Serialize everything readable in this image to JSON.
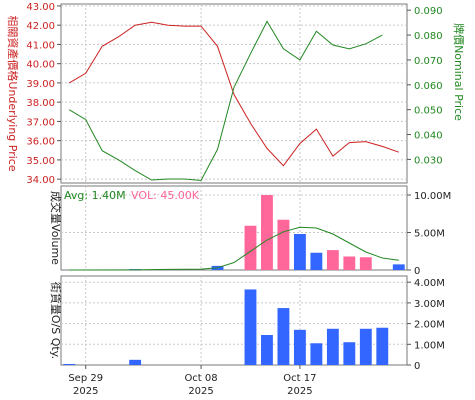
{
  "chart_data": [
    {
      "type": "line",
      "y_left_label": "相關資產價格Underlying Price",
      "y_right_label": "牌價Nominal Price",
      "y_left_ticks": [
        "34.00",
        "35.00",
        "36.00",
        "37.00",
        "38.00",
        "39.00",
        "40.00",
        "41.00",
        "42.00",
        "43.00"
      ],
      "y_right_ticks": [
        "0.030",
        "0.040",
        "0.050",
        "0.060",
        "0.070",
        "0.080",
        "0.090"
      ],
      "ylim_left": [
        33.8,
        43.1
      ],
      "ylim_right": [
        0.0205,
        0.0925
      ],
      "grid": true,
      "series": [
        {
          "color": "#cc2222",
          "axis": "left",
          "points": [
            [
              0,
              39.0
            ],
            [
              1,
              39.5
            ],
            [
              2,
              40.9
            ],
            [
              3,
              41.4
            ],
            [
              4,
              42.0
            ],
            [
              5,
              42.15
            ],
            [
              6,
              42.0
            ],
            [
              7,
              41.95
            ],
            [
              8,
              41.95
            ],
            [
              9,
              40.9
            ],
            [
              10,
              38.4
            ],
            [
              11,
              36.9
            ],
            [
              12,
              35.6
            ],
            [
              13,
              34.7
            ],
            [
              14,
              35.85
            ],
            [
              15,
              36.6
            ],
            [
              16,
              35.2
            ],
            [
              17,
              35.9
            ],
            [
              18,
              35.95
            ],
            [
              19,
              35.7
            ],
            [
              20,
              35.4
            ]
          ]
        },
        {
          "color": "#228822",
          "axis": "right",
          "points": [
            [
              0,
              0.05
            ],
            [
              1,
              0.046
            ],
            [
              2,
              0.0335
            ],
            [
              3,
              0.0298
            ],
            [
              4,
              0.0255
            ],
            [
              5,
              0.0217
            ],
            [
              6,
              0.0221
            ],
            [
              7,
              0.0221
            ],
            [
              8,
              0.0215
            ],
            [
              9,
              0.034
            ],
            [
              10,
              0.059
            ],
            [
              11,
              0.0725
            ],
            [
              12,
              0.0855
            ],
            [
              13,
              0.0745
            ],
            [
              14,
              0.07
            ],
            [
              15,
              0.0815
            ],
            [
              16,
              0.076
            ],
            [
              17,
              0.0745
            ],
            [
              18,
              0.0765
            ],
            [
              19,
              0.08
            ]
          ]
        }
      ]
    },
    {
      "type": "bar",
      "ylabel": "成交量Volume",
      "legend": [
        {
          "text": "Avg: 1.40M",
          "color": "#228822"
        },
        {
          "text": "VOL: 45.00K",
          "color": "#ff6699"
        }
      ],
      "y_ticks": [
        "0",
        "5.00M",
        "10.00M"
      ],
      "ylim": [
        0,
        11.2
      ],
      "unit": "M",
      "grid": true,
      "bars": [
        {
          "x": 4,
          "value": 0.12,
          "color": "#3366ff"
        },
        {
          "x": 9,
          "value": 0.55,
          "color": "#3366ff"
        },
        {
          "x": 11,
          "value": 5.9,
          "color": "#ff6699"
        },
        {
          "x": 12,
          "value": 10.0,
          "color": "#ff6699"
        },
        {
          "x": 13,
          "value": 6.7,
          "color": "#ff6699"
        },
        {
          "x": 14,
          "value": 4.8,
          "color": "#3366ff"
        },
        {
          "x": 15,
          "value": 2.3,
          "color": "#3366ff"
        },
        {
          "x": 16,
          "value": 2.65,
          "color": "#ff6699"
        },
        {
          "x": 17,
          "value": 1.8,
          "color": "#ff6699"
        },
        {
          "x": 18,
          "value": 1.7,
          "color": "#ff6699"
        },
        {
          "x": 20,
          "value": 0.75,
          "color": "#3366ff"
        }
      ],
      "avg_line": {
        "color": "#228822",
        "points": [
          [
            0,
            0.0
          ],
          [
            4,
            0.02
          ],
          [
            6,
            0.08
          ],
          [
            8,
            0.12
          ],
          [
            9,
            0.3
          ],
          [
            10,
            1.0
          ],
          [
            11,
            2.5
          ],
          [
            12,
            4.0
          ],
          [
            13,
            5.1
          ],
          [
            14,
            5.7
          ],
          [
            15,
            5.6
          ],
          [
            16,
            4.8
          ],
          [
            17,
            3.6
          ],
          [
            18,
            2.4
          ],
          [
            19,
            1.6
          ],
          [
            20,
            1.3
          ]
        ]
      }
    },
    {
      "type": "bar",
      "ylabel": "街貨量O/S Qty.",
      "y_ticks": [
        "0",
        "1.00M",
        "2.00M",
        "3.00M",
        "4.00M"
      ],
      "ylim": [
        0,
        4.3
      ],
      "unit": "M",
      "grid": true,
      "bars": [
        {
          "x": 0,
          "value": 0.05,
          "color": "#3366ff"
        },
        {
          "x": 4,
          "value": 0.25,
          "color": "#3366ff"
        },
        {
          "x": 11,
          "value": 3.65,
          "color": "#3366ff"
        },
        {
          "x": 12,
          "value": 1.45,
          "color": "#3366ff"
        },
        {
          "x": 13,
          "value": 2.75,
          "color": "#3366ff"
        },
        {
          "x": 14,
          "value": 1.7,
          "color": "#3366ff"
        },
        {
          "x": 15,
          "value": 1.05,
          "color": "#3366ff"
        },
        {
          "x": 16,
          "value": 1.75,
          "color": "#3366ff"
        },
        {
          "x": 17,
          "value": 1.1,
          "color": "#3366ff"
        },
        {
          "x": 18,
          "value": 1.75,
          "color": "#3366ff"
        },
        {
          "x": 19,
          "value": 1.8,
          "color": "#3366ff"
        }
      ]
    }
  ],
  "x_axis": {
    "n": 21,
    "labels": [
      {
        "x": 1,
        "line1": "Sep 29",
        "line2": "2025"
      },
      {
        "x": 8,
        "line1": "Oct 08",
        "line2": "2025"
      },
      {
        "x": 14,
        "line1": "Oct 17",
        "line2": "2025"
      }
    ]
  }
}
